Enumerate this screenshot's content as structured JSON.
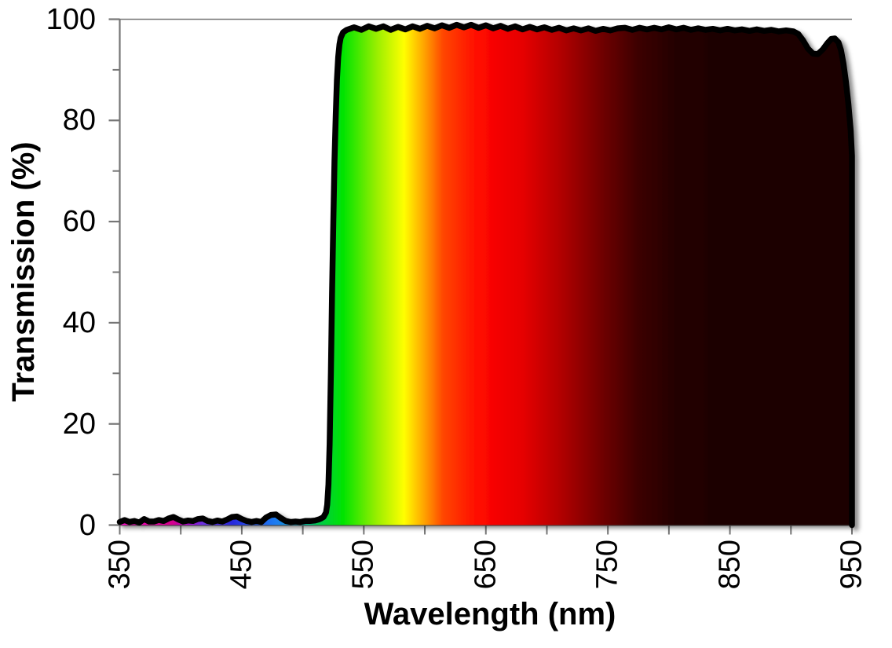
{
  "figure": {
    "background": "#ffffff",
    "axis_color": "#767676",
    "text_color": "#000000"
  },
  "chart_data": {
    "type": "area",
    "title": "",
    "xlabel": "Wavelength (nm)",
    "ylabel": "Transmission (%)",
    "xlim": [
      350,
      950
    ],
    "ylim": [
      0,
      100
    ],
    "x_major_ticks": [
      350,
      450,
      550,
      650,
      750,
      850,
      950
    ],
    "x_minor_ticks": [
      400,
      500,
      600,
      700,
      800,
      900
    ],
    "y_major_ticks": [
      0,
      20,
      40,
      60,
      80,
      100
    ],
    "y_minor_ticks": [
      10,
      30,
      50,
      70,
      90
    ],
    "grid": "off",
    "legend": "none",
    "curve_color": "#000000",
    "curve_width": 7.5,
    "fill_style": "spectral gradient mapped to wavelength",
    "gradient_stops": [
      {
        "nm": 350,
        "color": "#ff00c8"
      },
      {
        "nm": 393,
        "color": "#d4008c"
      },
      {
        "nm": 405,
        "color": "#b000c8"
      },
      {
        "nm": 418,
        "color": "#6a30e0"
      },
      {
        "nm": 442,
        "color": "#2828dc"
      },
      {
        "nm": 460,
        "color": "#2255ee"
      },
      {
        "nm": 478,
        "color": "#1e7cf0"
      },
      {
        "nm": 497,
        "color": "#00a0b4"
      },
      {
        "nm": 512,
        "color": "#00c850"
      },
      {
        "nm": 533,
        "color": "#00e400"
      },
      {
        "nm": 560,
        "color": "#96ee00"
      },
      {
        "nm": 583,
        "color": "#ffff00"
      },
      {
        "nm": 600,
        "color": "#ffa000"
      },
      {
        "nm": 615,
        "color": "#ff4600"
      },
      {
        "nm": 645,
        "color": "#ff0800"
      },
      {
        "nm": 680,
        "color": "#e60000"
      },
      {
        "nm": 710,
        "color": "#b40000"
      },
      {
        "nm": 745,
        "color": "#700000"
      },
      {
        "nm": 775,
        "color": "#3c0000"
      },
      {
        "nm": 805,
        "color": "#240000"
      },
      {
        "nm": 850,
        "color": "#1c0000"
      },
      {
        "nm": 950,
        "color": "#1d0404"
      }
    ],
    "points": [
      [
        350,
        0.6
      ],
      [
        354,
        1.0
      ],
      [
        358,
        0.6
      ],
      [
        362,
        0.8
      ],
      [
        366,
        0.5
      ],
      [
        370,
        1.2
      ],
      [
        374,
        0.7
      ],
      [
        378,
        0.7
      ],
      [
        382,
        1.0
      ],
      [
        386,
        0.8
      ],
      [
        390,
        1.3
      ],
      [
        394,
        1.6
      ],
      [
        398,
        1.1
      ],
      [
        402,
        0.7
      ],
      [
        406,
        0.9
      ],
      [
        410,
        0.8
      ],
      [
        414,
        1.2
      ],
      [
        418,
        1.3
      ],
      [
        422,
        0.8
      ],
      [
        426,
        0.6
      ],
      [
        430,
        0.9
      ],
      [
        434,
        0.7
      ],
      [
        438,
        1.1
      ],
      [
        442,
        1.6
      ],
      [
        446,
        1.7
      ],
      [
        450,
        1.2
      ],
      [
        454,
        0.8
      ],
      [
        458,
        0.6
      ],
      [
        462,
        0.8
      ],
      [
        466,
        0.6
      ],
      [
        470,
        1.5
      ],
      [
        474,
        2.0
      ],
      [
        478,
        2.1
      ],
      [
        482,
        1.4
      ],
      [
        486,
        0.8
      ],
      [
        490,
        0.6
      ],
      [
        494,
        0.7
      ],
      [
        498,
        0.6
      ],
      [
        502,
        0.8
      ],
      [
        506,
        0.8
      ],
      [
        510,
        0.9
      ],
      [
        513,
        1.1
      ],
      [
        515,
        1.3
      ],
      [
        517,
        1.6
      ],
      [
        519,
        2.5
      ],
      [
        520,
        4.0
      ],
      [
        521,
        8.0
      ],
      [
        522,
        16.0
      ],
      [
        523,
        30.0
      ],
      [
        524,
        46.0
      ],
      [
        525,
        60.0
      ],
      [
        526,
        72.0
      ],
      [
        527,
        81.0
      ],
      [
        528,
        88.0
      ],
      [
        529,
        92.5
      ],
      [
        530,
        95.0
      ],
      [
        531,
        96.3
      ],
      [
        533,
        97.4
      ],
      [
        536,
        97.9
      ],
      [
        542,
        98.4
      ],
      [
        548,
        97.9
      ],
      [
        554,
        98.6
      ],
      [
        560,
        98.1
      ],
      [
        566,
        98.6
      ],
      [
        572,
        97.9
      ],
      [
        578,
        98.5
      ],
      [
        584,
        98.0
      ],
      [
        590,
        98.6
      ],
      [
        596,
        98.1
      ],
      [
        602,
        98.7
      ],
      [
        608,
        98.2
      ],
      [
        614,
        98.8
      ],
      [
        620,
        98.3
      ],
      [
        626,
        98.9
      ],
      [
        632,
        98.4
      ],
      [
        638,
        98.9
      ],
      [
        644,
        98.3
      ],
      [
        650,
        98.8
      ],
      [
        656,
        98.2
      ],
      [
        662,
        98.7
      ],
      [
        668,
        98.1
      ],
      [
        674,
        98.6
      ],
      [
        680,
        98.0
      ],
      [
        686,
        98.5
      ],
      [
        692,
        98.0
      ],
      [
        698,
        98.4
      ],
      [
        704,
        97.9
      ],
      [
        710,
        98.3
      ],
      [
        716,
        97.8
      ],
      [
        722,
        98.2
      ],
      [
        728,
        97.8
      ],
      [
        734,
        98.2
      ],
      [
        740,
        97.7
      ],
      [
        746,
        98.1
      ],
      [
        752,
        97.8
      ],
      [
        758,
        98.2
      ],
      [
        764,
        98.3
      ],
      [
        770,
        97.9
      ],
      [
        776,
        98.3
      ],
      [
        782,
        98.0
      ],
      [
        788,
        98.3
      ],
      [
        794,
        98.0
      ],
      [
        800,
        98.4
      ],
      [
        806,
        98.0
      ],
      [
        812,
        98.3
      ],
      [
        818,
        97.9
      ],
      [
        824,
        98.2
      ],
      [
        830,
        97.9
      ],
      [
        836,
        98.1
      ],
      [
        842,
        97.8
      ],
      [
        848,
        98.1
      ],
      [
        854,
        97.8
      ],
      [
        860,
        98.0
      ],
      [
        866,
        97.7
      ],
      [
        872,
        98.0
      ],
      [
        878,
        97.7
      ],
      [
        884,
        97.9
      ],
      [
        890,
        97.6
      ],
      [
        896,
        97.8
      ],
      [
        902,
        97.6
      ],
      [
        906,
        97.1
      ],
      [
        910,
        95.8
      ],
      [
        914,
        94.2
      ],
      [
        918,
        93.2
      ],
      [
        922,
        93.1
      ],
      [
        926,
        94.0
      ],
      [
        930,
        95.3
      ],
      [
        933,
        96.1
      ],
      [
        936,
        96.2
      ],
      [
        939,
        95.4
      ],
      [
        941,
        93.9
      ],
      [
        943,
        91.3
      ],
      [
        945,
        87.8
      ],
      [
        947,
        83.5
      ],
      [
        949,
        78.0
      ],
      [
        950,
        73.0
      ],
      [
        950,
        0
      ]
    ]
  }
}
